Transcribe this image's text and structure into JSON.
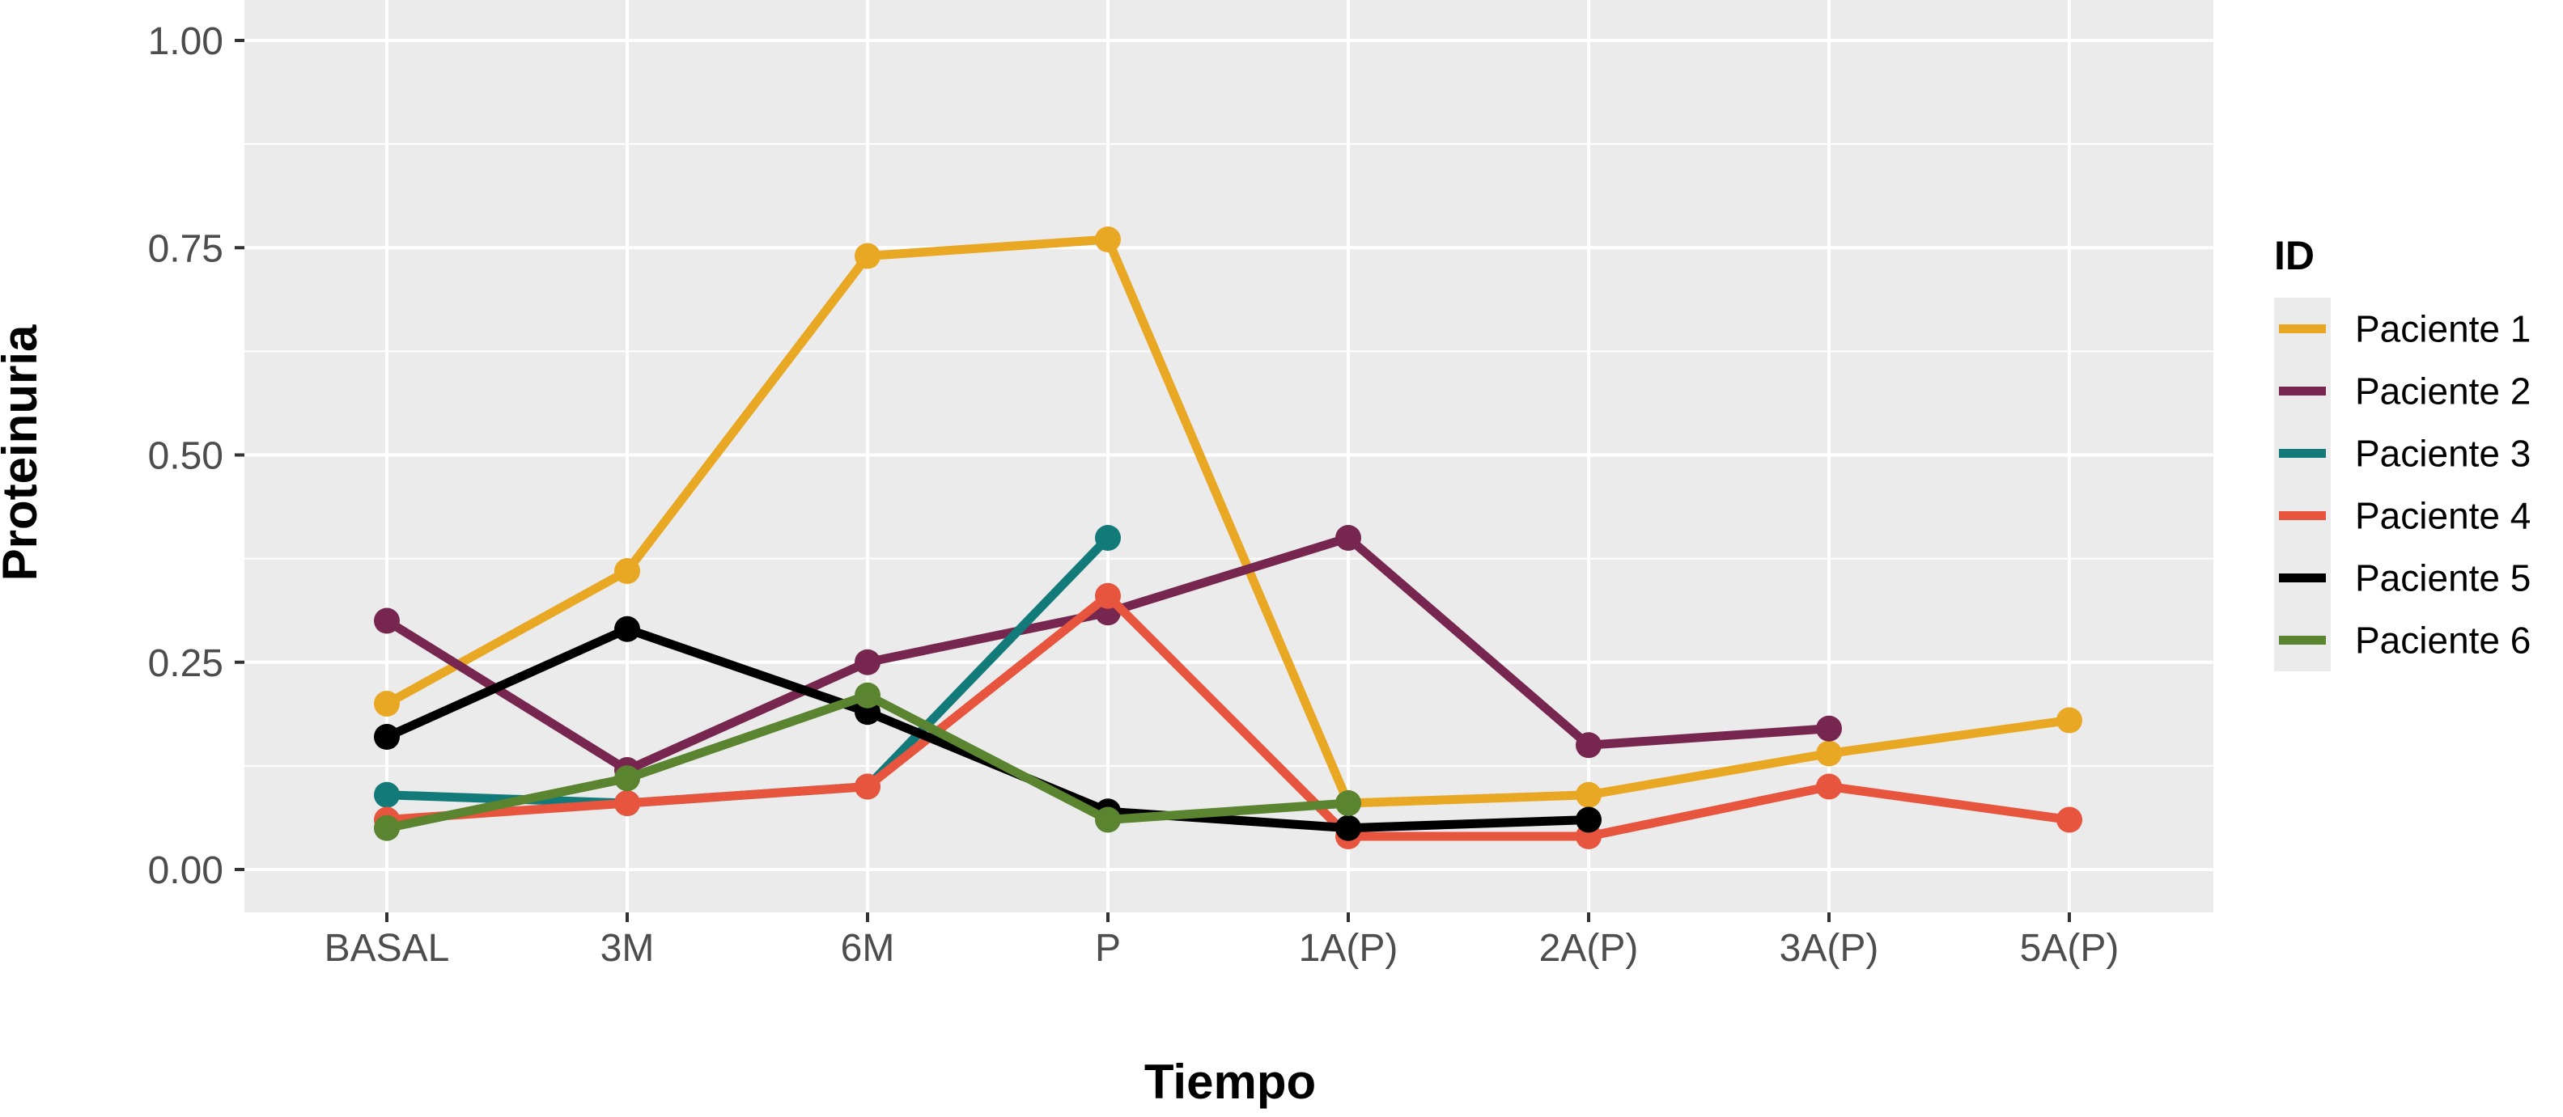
{
  "chart_data": {
    "type": "line",
    "title": "",
    "xlabel": "Tiempo",
    "ylabel": "Proteinuria",
    "categories": [
      "BASAL",
      "3M",
      "6M",
      "P",
      "1A(P)",
      "2A(P)",
      "3A(P)",
      "5A(P)"
    ],
    "y_ticks": [
      "0.00",
      "0.25",
      "0.50",
      "0.75",
      "1.00"
    ],
    "ylim": [
      0,
      1
    ],
    "grid": true,
    "legend": {
      "title": "ID",
      "position": "right"
    },
    "series": [
      {
        "name": "Paciente 1",
        "color": "#E8A824",
        "values": [
          0.2,
          0.36,
          0.74,
          0.76,
          0.08,
          0.09,
          0.14,
          0.18
        ]
      },
      {
        "name": "Paciente 2",
        "color": "#76264F",
        "values": [
          0.3,
          0.12,
          0.25,
          0.31,
          0.4,
          0.15,
          0.17,
          null
        ]
      },
      {
        "name": "Paciente 3",
        "color": "#137A7A",
        "values": [
          0.09,
          0.08,
          0.1,
          0.4,
          null,
          null,
          null,
          null
        ]
      },
      {
        "name": "Paciente 4",
        "color": "#E8553E",
        "values": [
          0.06,
          0.08,
          0.1,
          0.33,
          0.04,
          0.04,
          0.1,
          0.06
        ]
      },
      {
        "name": "Paciente 5",
        "color": "#000000",
        "values": [
          0.16,
          0.29,
          0.19,
          0.07,
          0.05,
          0.06,
          null,
          null
        ]
      },
      {
        "name": "Paciente 6",
        "color": "#5A842F",
        "values": [
          0.05,
          0.11,
          0.21,
          0.06,
          0.08,
          null,
          null,
          null
        ]
      }
    ]
  }
}
